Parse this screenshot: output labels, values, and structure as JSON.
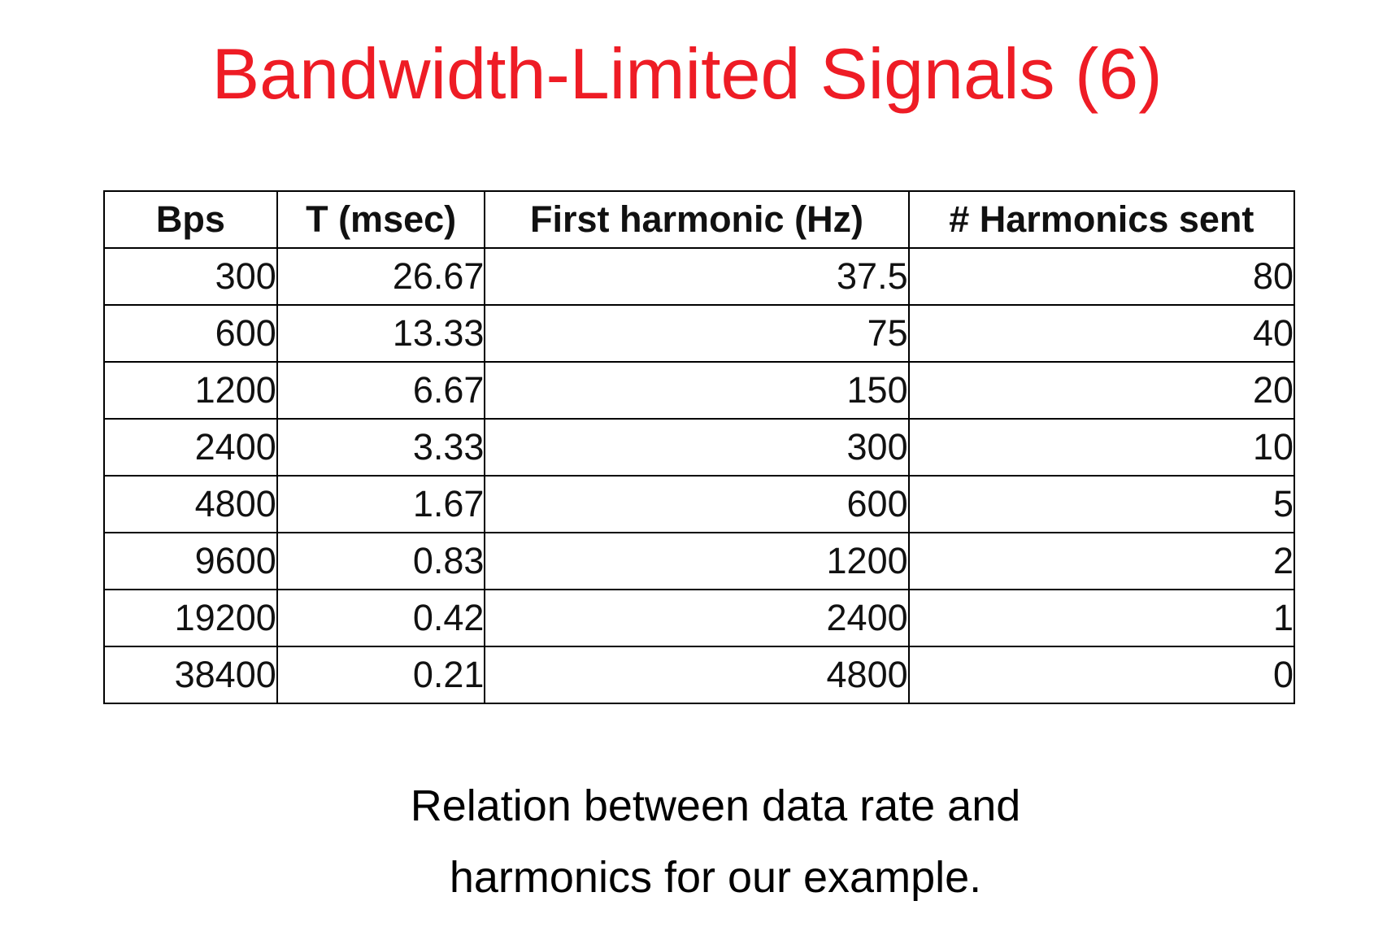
{
  "title": "Bandwidth-Limited Signals (6)",
  "table": {
    "headers": [
      "Bps",
      "T (msec)",
      "First harmonic (Hz)",
      "# Harmonics sent"
    ],
    "rows": [
      [
        "300",
        "26.67",
        "37.5",
        "80"
      ],
      [
        "600",
        "13.33",
        "75",
        "40"
      ],
      [
        "1200",
        "6.67",
        "150",
        "20"
      ],
      [
        "2400",
        "3.33",
        "300",
        "10"
      ],
      [
        "4800",
        "1.67",
        "600",
        "5"
      ],
      [
        "9600",
        "0.83",
        "1200",
        "2"
      ],
      [
        "19200",
        "0.42",
        "2400",
        "1"
      ],
      [
        "38400",
        "0.21",
        "4800",
        "0"
      ]
    ]
  },
  "caption": {
    "line1": "Relation between data rate and",
    "line2": "harmonics for our example."
  },
  "colors": {
    "title": "#ee1c25",
    "text": "#111111",
    "border": "#000000",
    "background": "#ffffff"
  }
}
